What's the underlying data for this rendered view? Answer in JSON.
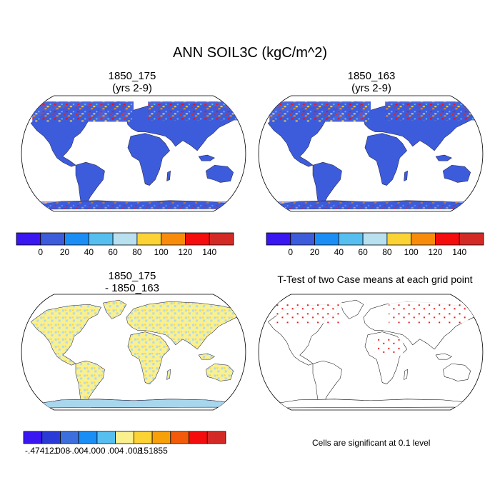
{
  "title": "ANN SOIL3C (kgC/m^2)",
  "panels": [
    {
      "line1": "1850_175",
      "line2": "(yrs 2-9)"
    },
    {
      "line1": "1850_163",
      "line2": "(yrs 2-9)"
    },
    {
      "line1": "1850_175",
      "line2": "- 1850_163"
    },
    {
      "line1": "T-Test of two Case means at each grid point",
      "line2": ""
    }
  ],
  "colorbar_abs": {
    "colors": [
      "#3a16f0",
      "#3d5cdc",
      "#1b8ef6",
      "#56bff0",
      "#b8e0ef",
      "#fbd335",
      "#f88c0a",
      "#f50c0c",
      "#d42a26"
    ],
    "labels": [
      "0",
      "20",
      "40",
      "60",
      "80",
      "100",
      "120",
      "140"
    ]
  },
  "colorbar_diff": {
    "colors": [
      "#3a16f0",
      "#2a3ad6",
      "#3d6ede",
      "#1b8ef6",
      "#56bff0",
      "#fbf08e",
      "#fbd335",
      "#f8a00a",
      "#f35a0a",
      "#f50c0c",
      "#d42a26"
    ],
    "labels": [
      "-.474121",
      "-.008",
      "-.004",
      ".000",
      ".004",
      ".008",
      ".151855"
    ]
  },
  "note": "Cells are significant at 0.1 level",
  "colors": {
    "land_abs": "#3d5cdc",
    "land_diff_light": "#fbf08e",
    "land_diff_blue": "#b3d9ec",
    "ttest_sig": "#e00000"
  }
}
